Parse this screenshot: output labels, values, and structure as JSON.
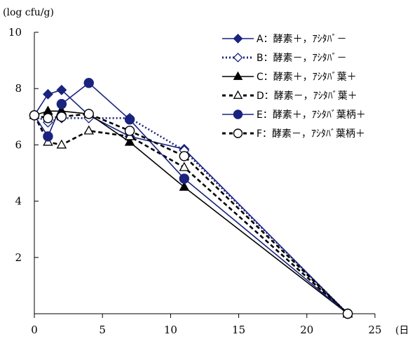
{
  "chart_data": {
    "type": "line",
    "ylabel": "(log cfu/g)",
    "xlabel": "(日",
    "xlim": [
      0,
      25
    ],
    "ylim": [
      0,
      10
    ],
    "x_ticks": [
      0,
      5,
      10,
      15,
      20,
      25
    ],
    "y_ticks": [
      2,
      4,
      6,
      8,
      10
    ],
    "x_tick_labels": [
      "0",
      "5",
      "10",
      "15",
      "20",
      "25"
    ],
    "y_tick_labels": [
      "2",
      "4",
      "6",
      "8",
      "10"
    ],
    "grid": false,
    "legend_position": "top-right",
    "series": [
      {
        "name": "A：酵素＋，ｱｼﾀﾊﾞ－",
        "color": "#1a237e",
        "dash": "solid",
        "marker": "diamond",
        "filled": true,
        "points": [
          [
            0,
            7.05
          ],
          [
            1,
            7.8
          ],
          [
            2,
            7.95
          ],
          [
            4,
            7.05
          ],
          [
            7,
            6.3
          ],
          [
            11,
            5.85
          ],
          [
            23,
            0.0
          ]
        ]
      },
      {
        "name": "B：酵素－，ｱｼﾀﾊﾞ－",
        "color": "#1a237e",
        "dash": "dotted",
        "marker": "diamond",
        "filled": false,
        "points": [
          [
            0,
            7.05
          ],
          [
            1,
            6.8
          ],
          [
            2,
            6.95
          ],
          [
            4,
            6.95
          ],
          [
            7,
            6.95
          ],
          [
            11,
            5.8
          ],
          [
            23,
            0.0
          ]
        ]
      },
      {
        "name": "C：酵素＋，ｱｼﾀﾊﾞ葉＋",
        "color": "#000000",
        "dash": "solid",
        "marker": "triangle",
        "filled": true,
        "points": [
          [
            0,
            7.05
          ],
          [
            1,
            7.2
          ],
          [
            2,
            7.2
          ],
          [
            4,
            7.1
          ],
          [
            7,
            6.1
          ],
          [
            11,
            4.5
          ],
          [
            23,
            0.0
          ]
        ]
      },
      {
        "name": "D：酵素－，ｱｼﾀﾊﾞ葉＋",
        "color": "#000000",
        "dash": "dashed",
        "marker": "triangle",
        "filled": false,
        "points": [
          [
            0,
            7.05
          ],
          [
            1,
            6.1
          ],
          [
            2,
            6.0
          ],
          [
            4,
            6.5
          ],
          [
            7,
            6.3
          ],
          [
            11,
            5.2
          ],
          [
            23,
            0.0
          ]
        ]
      },
      {
        "name": "E：酵素＋，ｱｼﾀﾊﾞ葉柄＋",
        "color": "#1a237e",
        "dash": "solid",
        "marker": "circle",
        "filled": true,
        "points": [
          [
            0,
            7.05
          ],
          [
            1,
            6.3
          ],
          [
            2,
            7.45
          ],
          [
            4,
            8.2
          ],
          [
            7,
            6.9
          ],
          [
            11,
            4.8
          ],
          [
            23,
            0.0
          ]
        ]
      },
      {
        "name": "F：酵素－，ｱｼﾀﾊﾞ葉柄＋",
        "color": "#000000",
        "dash": "dashed",
        "marker": "circle",
        "filled": false,
        "points": [
          [
            0,
            7.05
          ],
          [
            1,
            6.95
          ],
          [
            2,
            7.0
          ],
          [
            4,
            7.1
          ],
          [
            7,
            6.5
          ],
          [
            11,
            5.6
          ],
          [
            23,
            0.0
          ]
        ]
      }
    ]
  }
}
